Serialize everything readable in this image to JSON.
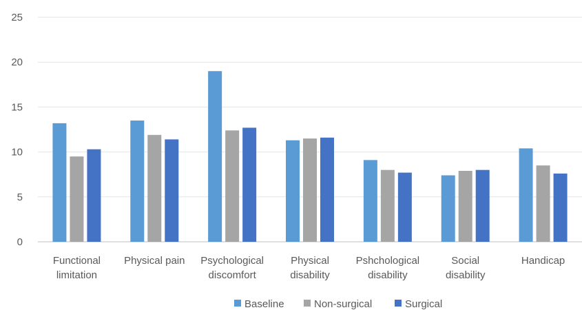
{
  "chart_data": {
    "type": "bar",
    "title": "",
    "xlabel": "",
    "ylabel": "",
    "ylim": [
      0,
      25
    ],
    "yticks": [
      0,
      5,
      10,
      15,
      20,
      25
    ],
    "grid": true,
    "legend_position": "bottom",
    "categories": [
      [
        "Functional",
        "limitation"
      ],
      [
        "Physical pain"
      ],
      [
        "Psychological",
        "discomfort"
      ],
      [
        "Physical",
        "disability"
      ],
      [
        "Pshchological",
        "disability"
      ],
      [
        "Social",
        "disability"
      ],
      [
        "Handicap"
      ]
    ],
    "series": [
      {
        "name": "Baseline",
        "color": "#5b9bd5",
        "values": [
          13.2,
          13.5,
          19.0,
          11.3,
          9.1,
          7.4,
          10.4
        ]
      },
      {
        "name": "Non-surgical",
        "color": "#a5a5a5",
        "values": [
          9.5,
          11.9,
          12.4,
          11.5,
          8.0,
          7.9,
          8.5
        ]
      },
      {
        "name": "Surgical",
        "color": "#4472c4",
        "values": [
          10.3,
          11.4,
          12.7,
          11.6,
          7.7,
          8.0,
          7.6
        ]
      }
    ]
  }
}
